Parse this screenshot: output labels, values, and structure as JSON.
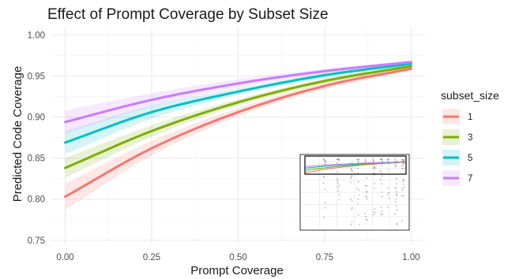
{
  "chart_data": {
    "type": "line",
    "title": "Effect of Prompt Coverage by Subset Size",
    "xlabel": "Prompt Coverage",
    "ylabel": "Predicted Code Coverage",
    "xlim": [
      -0.04,
      1.04
    ],
    "ylim": [
      0.745,
      1.01
    ],
    "x_ticks": [
      0.0,
      0.25,
      0.5,
      0.75,
      1.0
    ],
    "x_tick_labels": [
      "0.00",
      "0.25",
      "0.50",
      "0.75",
      "1.00"
    ],
    "y_ticks": [
      0.75,
      0.8,
      0.85,
      0.9,
      0.95,
      1.0
    ],
    "y_tick_labels": [
      "0.75",
      "0.80",
      "0.85",
      "0.90",
      "0.95",
      "1.00"
    ],
    "grid": true,
    "legend": {
      "title": "subset_size",
      "position": "right"
    },
    "x": [
      0.0,
      0.25,
      0.5,
      0.75,
      1.0
    ],
    "series": [
      {
        "name": "1",
        "color": "#F8766D",
        "values": [
          0.803,
          0.862,
          0.906,
          0.938,
          0.959
        ],
        "lower": [
          0.787,
          0.853,
          0.901,
          0.934,
          0.956
        ],
        "upper": [
          0.819,
          0.871,
          0.911,
          0.942,
          0.962
        ]
      },
      {
        "name": "3",
        "color": "#7CAE00",
        "values": [
          0.838,
          0.883,
          0.918,
          0.944,
          0.962
        ],
        "lower": [
          0.826,
          0.876,
          0.914,
          0.941,
          0.96
        ],
        "upper": [
          0.85,
          0.89,
          0.922,
          0.947,
          0.964
        ]
      },
      {
        "name": "5",
        "color": "#00BFC4",
        "values": [
          0.869,
          0.906,
          0.931,
          0.951,
          0.965
        ],
        "lower": [
          0.855,
          0.898,
          0.927,
          0.948,
          0.963
        ],
        "upper": [
          0.883,
          0.914,
          0.935,
          0.954,
          0.967
        ]
      },
      {
        "name": "7",
        "color": "#C77CFF",
        "values": [
          0.894,
          0.921,
          0.941,
          0.956,
          0.967
        ],
        "lower": [
          0.88,
          0.913,
          0.936,
          0.953,
          0.965
        ],
        "upper": [
          0.908,
          0.929,
          0.946,
          0.959,
          0.969
        ]
      }
    ],
    "inset": {
      "description_type": "thumbnail-scatter"
    }
  }
}
